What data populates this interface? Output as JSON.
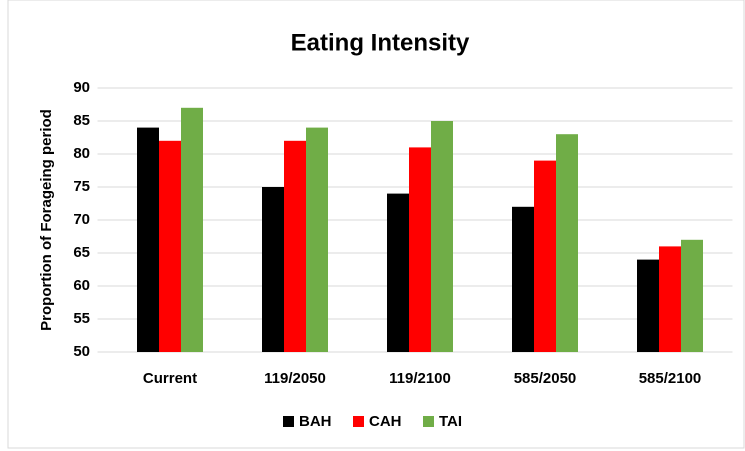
{
  "chart_data": {
    "type": "bar",
    "title": "Eating Intensity",
    "y_label": "Proportion of Forageing period",
    "categories": [
      "Current",
      "119/2050",
      "119/2100",
      "585/2050",
      "585/2100"
    ],
    "series": [
      {
        "name": "BAH",
        "color": "#000000",
        "values": [
          84,
          75,
          74,
          72,
          64
        ]
      },
      {
        "name": "CAH",
        "color": "#ff0000",
        "values": [
          82,
          82,
          81,
          79,
          66
        ]
      },
      {
        "name": "TAI",
        "color": "#70ad47",
        "values": [
          87,
          84,
          85,
          83,
          67
        ]
      }
    ],
    "ylim": [
      50,
      90
    ],
    "yticks": [
      50,
      55,
      60,
      65,
      70,
      75,
      80,
      85,
      90
    ],
    "grid": true,
    "legend": "bottom"
  }
}
